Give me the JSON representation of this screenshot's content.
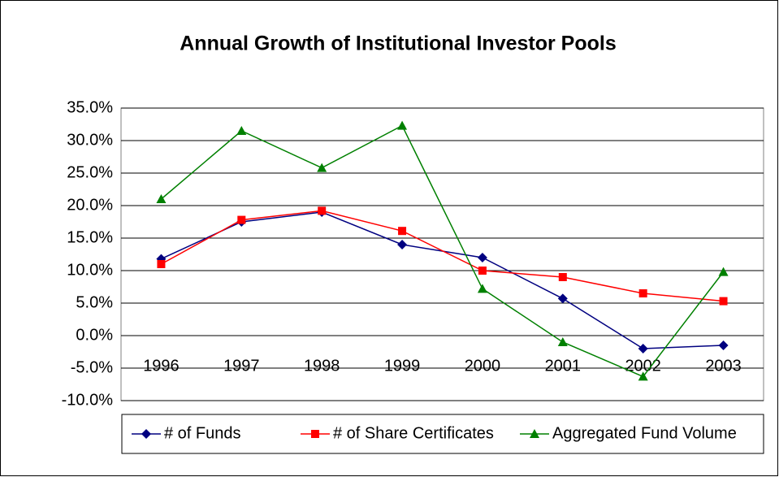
{
  "chart_data": {
    "type": "line",
    "title": "Annual Growth of Institutional Investor Pools",
    "categories": [
      "1996",
      "1997",
      "1998",
      "1999",
      "2000",
      "2001",
      "2002",
      "2003"
    ],
    "series": [
      {
        "name": "# of Funds",
        "color": "#000080",
        "marker": "diamond",
        "values": [
          11.8,
          17.5,
          19.0,
          14.0,
          12.0,
          5.7,
          -2.0,
          -1.5
        ]
      },
      {
        "name": "# of Share Certificates",
        "color": "#ff0000",
        "marker": "square",
        "values": [
          11.0,
          17.8,
          19.2,
          16.1,
          10.0,
          9.0,
          6.5,
          5.3
        ]
      },
      {
        "name": "Aggregated Fund Volume",
        "color": "#008000",
        "marker": "triangle",
        "values": [
          21.0,
          31.5,
          25.8,
          32.3,
          7.2,
          -1.0,
          -6.3,
          9.8
        ]
      }
    ],
    "ylim": [
      -10,
      35
    ],
    "yticks": [
      {
        "value": -10,
        "label": "-10.0%"
      },
      {
        "value": -5,
        "label": "-5.0%"
      },
      {
        "value": 0,
        "label": "0.0%"
      },
      {
        "value": 5,
        "label": "5.0%"
      },
      {
        "value": 10,
        "label": "10.0%"
      },
      {
        "value": 15,
        "label": "15.0%"
      },
      {
        "value": 20,
        "label": "20.0%"
      },
      {
        "value": 25,
        "label": "25.0%"
      },
      {
        "value": 30,
        "label": "30.0%"
      },
      {
        "value": 35,
        "label": "35.0%"
      }
    ],
    "grid": true,
    "legend": "bottom"
  }
}
